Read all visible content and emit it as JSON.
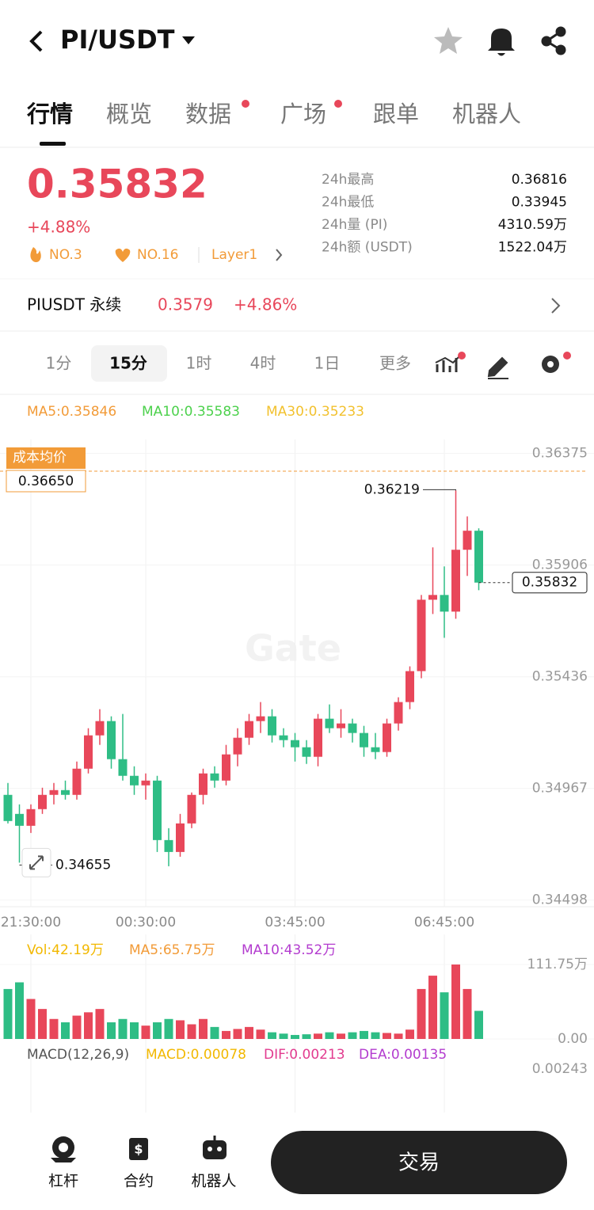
{
  "header": {
    "title": "PI/USDT"
  },
  "tabs": [
    "行情",
    "概览",
    "数据",
    "广场",
    "跟单",
    "机器人"
  ],
  "price": {
    "last": "0.35832",
    "change": "+4.88%",
    "tags": [
      "NO.3",
      "NO.16",
      "Layer1"
    ]
  },
  "stats": [
    {
      "label": "24h最高",
      "value": "0.36816"
    },
    {
      "label": "24h最低",
      "value": "0.33945"
    },
    {
      "label": "24h量 (PI)",
      "value": "4310.59万"
    },
    {
      "label": "24h额 (USDT)",
      "value": "1522.04万"
    }
  ],
  "perp": {
    "name": "PIUSDT 永续",
    "price": "0.3579",
    "change": "+4.86%"
  },
  "intervals": [
    "1分",
    "15分",
    "1时",
    "4时",
    "1日",
    "更多"
  ],
  "chart_data": {
    "type": "candlestick",
    "ma_legend": [
      "MA5:0.35846",
      "MA10:0.35583",
      "MA30:0.35233"
    ],
    "watermark": "Gate",
    "categories": [
      null,
      null,
      "21:30:00",
      null,
      null,
      null,
      null,
      null,
      null,
      null,
      null,
      null,
      "00:30:00",
      null,
      null,
      null,
      null,
      null,
      null,
      null,
      null,
      null,
      null,
      null,
      null,
      "03:45:00",
      null,
      null,
      null,
      null,
      null,
      null,
      null,
      null,
      null,
      null,
      null,
      null,
      "06:45:00",
      null,
      null,
      null
    ],
    "candles": [
      {
        "o": 0.3494,
        "h": 0.3499,
        "l": 0.3482,
        "c": 0.3483
      },
      {
        "o": 0.3486,
        "h": 0.349,
        "l": 0.34655,
        "c": 0.3481
      },
      {
        "o": 0.3481,
        "h": 0.349,
        "l": 0.3478,
        "c": 0.3488
      },
      {
        "o": 0.3488,
        "h": 0.3497,
        "l": 0.3486,
        "c": 0.3494
      },
      {
        "o": 0.3494,
        "h": 0.3499,
        "l": 0.349,
        "c": 0.3496
      },
      {
        "o": 0.3496,
        "h": 0.35,
        "l": 0.3492,
        "c": 0.3494
      },
      {
        "o": 0.3494,
        "h": 0.3508,
        "l": 0.3492,
        "c": 0.3505
      },
      {
        "o": 0.3505,
        "h": 0.3522,
        "l": 0.3503,
        "c": 0.3519
      },
      {
        "o": 0.3519,
        "h": 0.353,
        "l": 0.3515,
        "c": 0.3525
      },
      {
        "o": 0.3525,
        "h": 0.3527,
        "l": 0.3505,
        "c": 0.3509
      },
      {
        "o": 0.3509,
        "h": 0.3528,
        "l": 0.35,
        "c": 0.3502
      },
      {
        "o": 0.3502,
        "h": 0.3506,
        "l": 0.3494,
        "c": 0.3498
      },
      {
        "o": 0.3498,
        "h": 0.3503,
        "l": 0.3492,
        "c": 0.35
      },
      {
        "o": 0.35,
        "h": 0.3502,
        "l": 0.347,
        "c": 0.3475
      },
      {
        "o": 0.3475,
        "h": 0.348,
        "l": 0.3464,
        "c": 0.347
      },
      {
        "o": 0.347,
        "h": 0.3486,
        "l": 0.3468,
        "c": 0.3482
      },
      {
        "o": 0.3482,
        "h": 0.3495,
        "l": 0.348,
        "c": 0.3494
      },
      {
        "o": 0.3494,
        "h": 0.3505,
        "l": 0.349,
        "c": 0.3503
      },
      {
        "o": 0.3503,
        "h": 0.3506,
        "l": 0.3497,
        "c": 0.35
      },
      {
        "o": 0.35,
        "h": 0.3515,
        "l": 0.3498,
        "c": 0.3511
      },
      {
        "o": 0.3511,
        "h": 0.3522,
        "l": 0.3506,
        "c": 0.3518
      },
      {
        "o": 0.3518,
        "h": 0.3528,
        "l": 0.3515,
        "c": 0.3525
      },
      {
        "o": 0.3525,
        "h": 0.3533,
        "l": 0.352,
        "c": 0.3527
      },
      {
        "o": 0.3527,
        "h": 0.353,
        "l": 0.3516,
        "c": 0.3519
      },
      {
        "o": 0.3519,
        "h": 0.3522,
        "l": 0.3514,
        "c": 0.3517
      },
      {
        "o": 0.3517,
        "h": 0.352,
        "l": 0.3508,
        "c": 0.3514
      },
      {
        "o": 0.3514,
        "h": 0.3517,
        "l": 0.3507,
        "c": 0.351
      },
      {
        "o": 0.351,
        "h": 0.3528,
        "l": 0.3506,
        "c": 0.3526
      },
      {
        "o": 0.3526,
        "h": 0.3532,
        "l": 0.352,
        "c": 0.3522
      },
      {
        "o": 0.3522,
        "h": 0.353,
        "l": 0.3518,
        "c": 0.3524
      },
      {
        "o": 0.3524,
        "h": 0.3526,
        "l": 0.3516,
        "c": 0.352
      },
      {
        "o": 0.352,
        "h": 0.3523,
        "l": 0.351,
        "c": 0.3514
      },
      {
        "o": 0.3514,
        "h": 0.352,
        "l": 0.3509,
        "c": 0.3512
      },
      {
        "o": 0.3512,
        "h": 0.3526,
        "l": 0.351,
        "c": 0.3524
      },
      {
        "o": 0.3524,
        "h": 0.3535,
        "l": 0.3521,
        "c": 0.3533
      },
      {
        "o": 0.3533,
        "h": 0.3548,
        "l": 0.353,
        "c": 0.3546
      },
      {
        "o": 0.3546,
        "h": 0.3578,
        "l": 0.3543,
        "c": 0.3576
      },
      {
        "o": 0.3576,
        "h": 0.3598,
        "l": 0.357,
        "c": 0.3578
      },
      {
        "o": 0.3578,
        "h": 0.359,
        "l": 0.356,
        "c": 0.3571
      },
      {
        "o": 0.3571,
        "h": 0.36219,
        "l": 0.3568,
        "c": 0.3597
      },
      {
        "o": 0.3597,
        "h": 0.3611,
        "l": 0.3586,
        "c": 0.3605
      },
      {
        "o": 0.3605,
        "h": 0.3606,
        "l": 0.358,
        "c": 0.35832
      }
    ],
    "ylim": [
      0.3447,
      0.3645
    ],
    "yticks": [
      0.36375,
      0.35906,
      0.35436,
      0.34967,
      0.34498
    ],
    "up_color": "#e8475a",
    "down_color": "#2ebd85",
    "annotations": {
      "cost_label": "成本均价",
      "cost": "0.36650"
    },
    "volume_legend": [
      "Vol:42.19万",
      "MA5:65.75万",
      "MA10:43.52万"
    ],
    "volumes": [
      75,
      85,
      60,
      45,
      30,
      25,
      35,
      40,
      45,
      25,
      30,
      25,
      20,
      25,
      30,
      28,
      22,
      30,
      18,
      12,
      15,
      18,
      14,
      10,
      8,
      6,
      7,
      8,
      10,
      8,
      10,
      12,
      10,
      9,
      8,
      14,
      75,
      95,
      70,
      111.75,
      75,
      42.19
    ],
    "vlim": [
      0,
      111.75
    ],
    "vticks": [
      {
        "value": 111.75,
        "label": "111.75万"
      },
      {
        "value": 0,
        "label": "0.00"
      }
    ],
    "macd_legend": [
      "MACD(12,26,9)",
      "MACD:0.00078",
      "DIF:0.00213",
      "DEA:0.00135"
    ],
    "macd_axis_label": "0.00243"
  },
  "bottom": {
    "items": [
      "杠杆",
      "合约",
      "机器人"
    ],
    "button": "交易"
  }
}
